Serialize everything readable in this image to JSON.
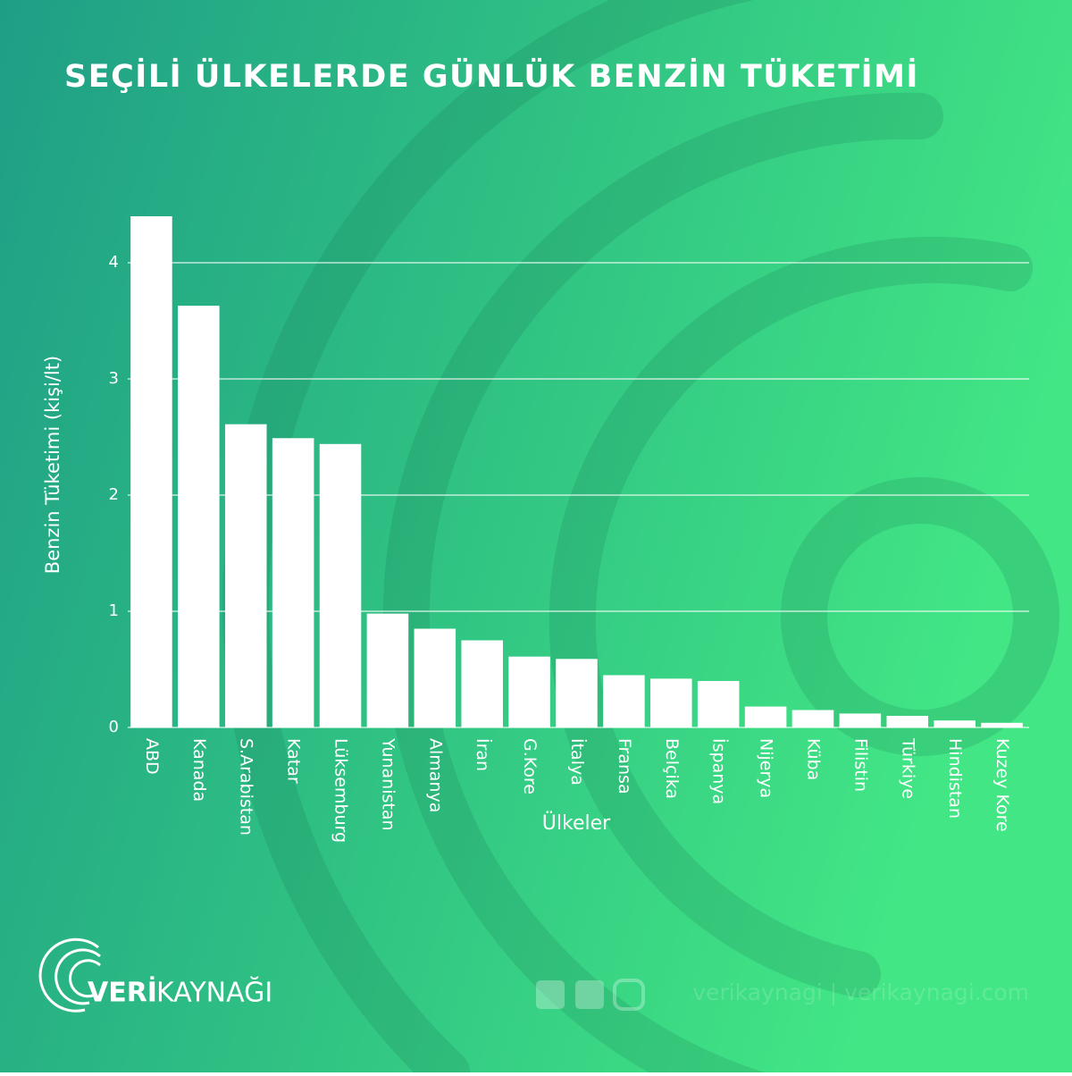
{
  "chart_data": {
    "type": "bar",
    "title": "SEÇİLİ ÜLKELERDE GÜNLÜK BENZİN TÜKETİMİ",
    "x_label": "Ülkeler",
    "y_label": "Benzin Tüketimi (kişi/lt)",
    "categories": [
      "ABD",
      "Kanada",
      "S.Arabistan",
      "Katar",
      "Lüksemburg",
      "Yunanistan",
      "Almanya",
      "İran",
      "G.Kore",
      "İtalya",
      "Fransa",
      "Belçika",
      "İspanya",
      "Nijerya",
      "Küba",
      "Filistin",
      "Türkiye",
      "Hindistan",
      "Kuzey Kore"
    ],
    "values": [
      4.4,
      3.63,
      2.61,
      2.49,
      2.44,
      0.98,
      0.85,
      0.75,
      0.61,
      0.59,
      0.45,
      0.42,
      0.4,
      0.18,
      0.15,
      0.12,
      0.1,
      0.06,
      0.04
    ],
    "color": "#ffffff",
    "ylim": [
      0,
      4.6
    ],
    "yticks": [
      0,
      1,
      2,
      3,
      4
    ],
    "grid": true
  },
  "footer": {
    "brand": "VERİ",
    "brand_suffix": "KAYNAĞI",
    "social": "verikaynagi | verikaynagi.com"
  }
}
